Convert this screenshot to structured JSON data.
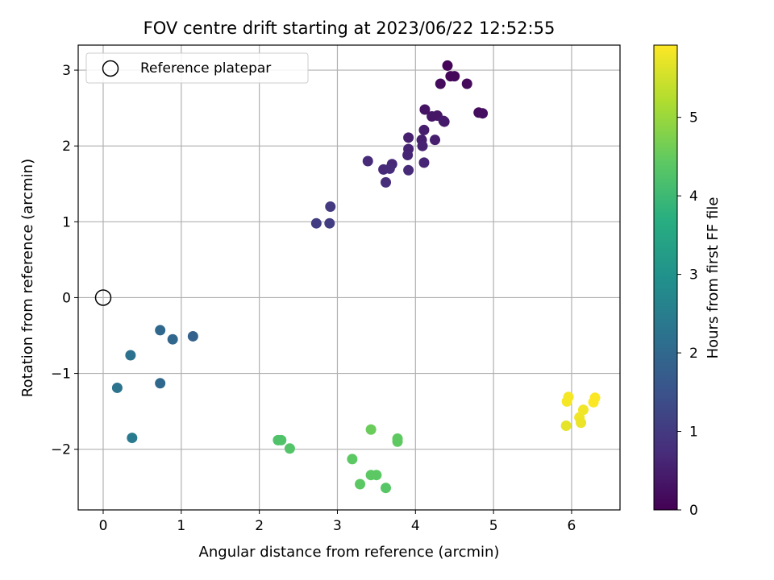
{
  "chart_data": {
    "type": "scatter",
    "title": "FOV centre drift starting at 2023/06/22 12:52:55",
    "xlabel": "Angular distance from reference (arcmin)",
    "ylabel": "Rotation from reference (arcmin)",
    "xlim": [
      -0.32,
      6.62
    ],
    "ylim": [
      -2.8,
      3.33
    ],
    "xticks": [
      0,
      1,
      2,
      3,
      4,
      5,
      6
    ],
    "xtick_labels": [
      "0",
      "1",
      "2",
      "3",
      "4",
      "5",
      "6"
    ],
    "yticks": [
      -2,
      -1,
      0,
      1,
      2,
      3
    ],
    "ytick_labels": [
      "−2",
      "−1",
      "0",
      "1",
      "2",
      "3"
    ],
    "grid": true,
    "legend": {
      "position": "top-left",
      "entries": [
        "Reference platepar"
      ]
    },
    "reference": {
      "x": 0,
      "y": 0,
      "marker": "open-circle"
    },
    "colorbar": {
      "label": "Hours from first FF file",
      "min": 0,
      "max": 5.92,
      "ticks": [
        0,
        1,
        2,
        3,
        4,
        5
      ],
      "tick_labels": [
        "0",
        "1",
        "2",
        "3",
        "4",
        "5"
      ],
      "colormap": "viridis"
    },
    "points": [
      {
        "x": 4.41,
        "y": 3.06,
        "c": 0.05
      },
      {
        "x": 4.45,
        "y": 2.92,
        "c": 0.1
      },
      {
        "x": 4.5,
        "y": 2.92,
        "c": 0.12
      },
      {
        "x": 4.32,
        "y": 2.82,
        "c": 0.18
      },
      {
        "x": 4.66,
        "y": 2.82,
        "c": 0.15
      },
      {
        "x": 4.81,
        "y": 2.44,
        "c": 0.2
      },
      {
        "x": 4.86,
        "y": 2.43,
        "c": 0.22
      },
      {
        "x": 4.12,
        "y": 2.48,
        "c": 0.3
      },
      {
        "x": 4.21,
        "y": 2.39,
        "c": 0.35
      },
      {
        "x": 4.28,
        "y": 2.4,
        "c": 0.35
      },
      {
        "x": 4.37,
        "y": 2.32,
        "c": 0.4
      },
      {
        "x": 4.36,
        "y": 2.33,
        "c": 0.42
      },
      {
        "x": 4.11,
        "y": 2.21,
        "c": 0.45
      },
      {
        "x": 3.91,
        "y": 2.11,
        "c": 0.5
      },
      {
        "x": 4.08,
        "y": 2.08,
        "c": 0.5
      },
      {
        "x": 4.25,
        "y": 2.08,
        "c": 0.48
      },
      {
        "x": 4.09,
        "y": 2.0,
        "c": 0.55
      },
      {
        "x": 3.91,
        "y": 1.96,
        "c": 0.58
      },
      {
        "x": 3.9,
        "y": 1.88,
        "c": 0.6
      },
      {
        "x": 3.39,
        "y": 1.8,
        "c": 0.7
      },
      {
        "x": 4.11,
        "y": 1.78,
        "c": 0.62
      },
      {
        "x": 3.7,
        "y": 1.76,
        "c": 0.68
      },
      {
        "x": 3.59,
        "y": 1.69,
        "c": 0.7
      },
      {
        "x": 3.67,
        "y": 1.7,
        "c": 0.72
      },
      {
        "x": 3.91,
        "y": 1.68,
        "c": 0.7
      },
      {
        "x": 3.62,
        "y": 1.52,
        "c": 0.75
      },
      {
        "x": 2.91,
        "y": 1.2,
        "c": 1.0
      },
      {
        "x": 2.73,
        "y": 0.98,
        "c": 1.05
      },
      {
        "x": 2.9,
        "y": 0.98,
        "c": 1.05
      },
      {
        "x": 0.73,
        "y": -0.43,
        "c": 2.0
      },
      {
        "x": 1.15,
        "y": -0.51,
        "c": 1.85
      },
      {
        "x": 0.89,
        "y": -0.55,
        "c": 1.95
      },
      {
        "x": 0.35,
        "y": -0.76,
        "c": 2.2
      },
      {
        "x": 0.73,
        "y": -1.13,
        "c": 2.0
      },
      {
        "x": 0.18,
        "y": -1.19,
        "c": 2.25
      },
      {
        "x": 0.37,
        "y": -1.85,
        "c": 2.4
      },
      {
        "x": 2.24,
        "y": -1.88,
        "c": 4.25
      },
      {
        "x": 2.28,
        "y": -1.88,
        "c": 4.25
      },
      {
        "x": 2.39,
        "y": -1.99,
        "c": 4.3
      },
      {
        "x": 3.19,
        "y": -2.13,
        "c": 4.4
      },
      {
        "x": 3.43,
        "y": -1.74,
        "c": 4.55
      },
      {
        "x": 3.77,
        "y": -1.86,
        "c": 4.45
      },
      {
        "x": 3.77,
        "y": -1.9,
        "c": 4.45
      },
      {
        "x": 3.29,
        "y": -2.46,
        "c": 4.4
      },
      {
        "x": 3.43,
        "y": -2.34,
        "c": 4.4
      },
      {
        "x": 3.5,
        "y": -2.34,
        "c": 4.4
      },
      {
        "x": 3.62,
        "y": -2.51,
        "c": 4.35
      },
      {
        "x": 5.96,
        "y": -1.31,
        "c": 5.85
      },
      {
        "x": 5.94,
        "y": -1.37,
        "c": 5.85
      },
      {
        "x": 6.3,
        "y": -1.32,
        "c": 5.9
      },
      {
        "x": 6.28,
        "y": -1.38,
        "c": 5.9
      },
      {
        "x": 6.15,
        "y": -1.48,
        "c": 5.8
      },
      {
        "x": 6.1,
        "y": -1.58,
        "c": 5.8
      },
      {
        "x": 6.12,
        "y": -1.65,
        "c": 5.75
      },
      {
        "x": 5.93,
        "y": -1.69,
        "c": 5.7
      }
    ]
  }
}
